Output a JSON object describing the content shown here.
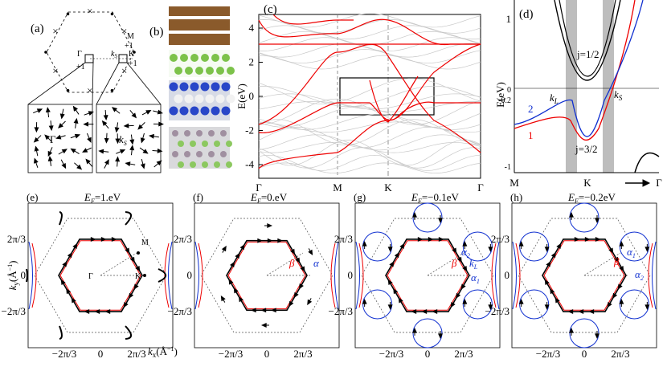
{
  "panels": {
    "a": {
      "label": "(a)",
      "M": "M",
      "M_sign": "+1",
      "K": "K",
      "K_sign": "+1",
      "Gamma": "Γ",
      "Gamma_sign": "+1",
      "kS_top": "k",
      "kS_top_sub": "S",
      "Gamma_zoom": "Γ",
      "kS_zoom": "k",
      "kS_zoom_sub": "S"
    },
    "b": {
      "label": "(b)"
    },
    "c": {
      "label": "(c)",
      "ylabel": "E(eV)",
      "yticks": [
        "4",
        "2",
        "0",
        "-2",
        "-4"
      ],
      "xlabels": [
        "Γ",
        "M",
        "K",
        "Γ"
      ]
    },
    "d": {
      "label": "(d)",
      "ylabel": "E(eV)",
      "yticks": [
        "1",
        "0",
        "-0.2",
        "-1"
      ],
      "j_half": "j=1/2",
      "j_three_half": "j=3/2",
      "kL": "k",
      "kL_sub": "L",
      "kS": "k",
      "kS_sub": "S",
      "band2": "2",
      "band1": "1",
      "xlabels": [
        "M",
        "K",
        "Γ"
      ]
    },
    "e": {
      "label": "(e)",
      "ef": "E",
      "ef_sub": "F",
      "ef_value": "=1.eV",
      "ylabel": "k",
      "ylabel_sub": "y",
      "yunit": "(Å",
      "yunit_sup": "−1",
      "yunit_end": ")",
      "xlabel": "k",
      "xlabel_sub": "x",
      "xunit": "(Å",
      "xunit_sup": "−1",
      "xunit_end": ")",
      "yticks": [
        "2π/3",
        "0",
        "−2π/3"
      ],
      "xticks": [
        "−2π/3",
        "0",
        "2π/3"
      ],
      "M": "M",
      "K": "K",
      "Gamma": "Γ"
    },
    "f": {
      "label": "(f)",
      "ef": "E",
      "ef_sub": "F",
      "ef_value": "=0.eV",
      "beta": "β",
      "alpha": "α",
      "yticks": [
        "2π/3",
        "0",
        "−2π/3"
      ],
      "xticks": [
        "−2π/3",
        "0",
        "2π/3"
      ]
    },
    "g": {
      "label": "(g)",
      "ef": "E",
      "ef_sub": "F",
      "ef_value": "=−0.1eV",
      "alpha2": "α",
      "alpha2_sub": "2",
      "kL": "k",
      "kL_sub": "L",
      "alpha1": "α",
      "alpha1_sub": "1",
      "beta": "β",
      "yticks": [
        "2π/3",
        "0",
        "−2π/3"
      ],
      "xticks": [
        "−2π/3",
        "0",
        "2π/3"
      ]
    },
    "h": {
      "label": "(h)",
      "ef": "E",
      "ef_sub": "F",
      "ef_value": "=−0.2eV",
      "alpha1": "α",
      "alpha1_sub": "1",
      "alpha2": "α",
      "alpha2_sub": "2",
      "beta": "β",
      "yticks": [
        "2π/3",
        "0",
        "−2π/3"
      ],
      "xticks": [
        "−2π/3",
        "0",
        "2π/3"
      ]
    }
  }
}
